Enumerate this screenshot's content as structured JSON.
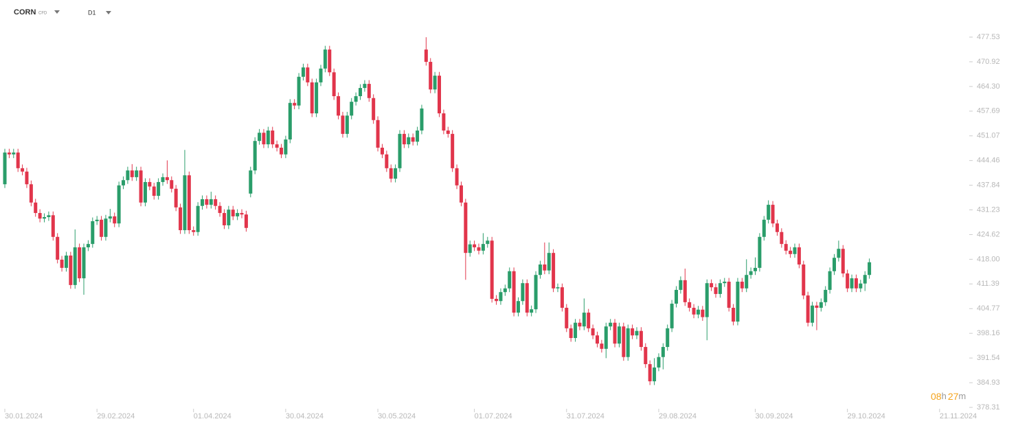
{
  "header": {
    "symbol": "CORN",
    "kind": "CFD",
    "interval": "D1"
  },
  "countdown": [
    "08",
    "h",
    "27",
    "m"
  ],
  "chart_data": {
    "type": "candlestick",
    "up_color": "#2a9d6a",
    "down_color": "#e1354b",
    "ylim": [
      378.31,
      480
    ],
    "yticks": [
      477.53,
      470.92,
      {
        "value": 464.3,
        "label": "464.30"
      },
      457.69,
      451.07,
      444.46,
      437.84,
      431.23,
      424.62,
      {
        "value": 418,
        "label": "418.00"
      },
      411.39,
      404.77,
      398.16,
      391.54,
      384.93,
      378.31
    ],
    "xlim": [
      -1.1,
      219.6
    ],
    "xticks": [
      {
        "value": 0,
        "label": "30.01.2024"
      },
      {
        "value": 21,
        "label": "29.02.2024"
      },
      {
        "value": 43,
        "label": "01.04.2024"
      },
      {
        "value": 64,
        "label": "30.04.2024"
      },
      {
        "value": 85,
        "label": "30.05.2024"
      },
      {
        "value": 107,
        "label": "01.07.2024"
      },
      {
        "value": 128,
        "label": "31.07.2024"
      },
      {
        "value": 149,
        "label": "29.08.2024"
      },
      {
        "value": 171,
        "label": "30.09.2024"
      },
      {
        "value": 192,
        "label": "29.10.2024"
      },
      {
        "value": 213,
        "label": "21.11.2024"
      }
    ],
    "ohlc": [
      [
        438.1,
        447.6,
        437.1,
        446.6
      ],
      [
        446.6,
        447.6,
        445.1,
        446.1
      ],
      [
        446.1,
        447.6,
        445.1,
        446.6
      ],
      [
        446.6,
        447.6,
        441.4,
        442.4
      ],
      [
        442.4,
        443.4,
        440.5,
        441.5
      ],
      [
        441.5,
        442.5,
        437.1,
        438.1
      ],
      [
        438.1,
        439.1,
        432.2,
        433.2
      ],
      [
        433.2,
        434.2,
        429.4,
        430.4
      ],
      [
        430.4,
        431.4,
        427.9,
        428.9
      ],
      [
        428.9,
        430.3,
        427.9,
        429.3
      ],
      [
        429.3,
        430.8,
        428.3,
        429.8
      ],
      [
        429.8,
        430.8,
        423.0,
        424.0
      ],
      [
        424.0,
        425.0,
        416.9,
        417.9
      ],
      [
        417.9,
        418.9,
        414.7,
        415.7
      ],
      [
        415.7,
        420.0,
        414.7,
        419.0
      ],
      [
        419.0,
        420.0,
        410.1,
        411.1
      ],
      [
        411.1,
        426.0,
        410.1,
        421.2
      ],
      [
        421.2,
        422.2,
        411.9,
        412.9
      ],
      [
        412.9,
        422.2,
        408.5,
        421.2
      ],
      [
        421.2,
        423.1,
        420.2,
        422.1
      ],
      [
        422.1,
        429.2,
        421.1,
        428.2
      ],
      [
        428.2,
        429.6,
        427.2,
        428.6
      ],
      [
        428.6,
        429.6,
        423.0,
        424.0
      ],
      [
        424.0,
        429.9,
        423.0,
        428.9
      ],
      [
        428.9,
        431.5,
        427.9,
        429.5
      ],
      [
        429.5,
        430.5,
        426.6,
        427.6
      ],
      [
        427.6,
        438.8,
        426.6,
        437.8
      ],
      [
        437.8,
        440.2,
        436.8,
        439.2
      ],
      [
        439.2,
        442.8,
        438.2,
        441.8
      ],
      [
        441.8,
        443.5,
        439.0,
        440.0
      ],
      [
        440.0,
        442.8,
        439.0,
        441.8
      ],
      [
        441.8,
        442.8,
        432.2,
        433.2
      ],
      [
        433.2,
        439.7,
        432.2,
        438.7
      ],
      [
        438.7,
        439.7,
        436.5,
        437.5
      ],
      [
        437.5,
        438.5,
        434.0,
        435.0
      ],
      [
        435.0,
        439.7,
        434.0,
        438.7
      ],
      [
        438.7,
        441.0,
        437.7,
        440.0
      ],
      [
        440.0,
        444.5,
        438.2,
        439.2
      ],
      [
        439.2,
        440.2,
        435.9,
        436.9
      ],
      [
        436.9,
        437.9,
        430.9,
        431.9
      ],
      [
        431.9,
        432.9,
        424.8,
        425.8
      ],
      [
        425.8,
        447.3,
        424.8,
        440.5
      ],
      [
        440.5,
        441.5,
        424.8,
        425.8
      ],
      [
        425.8,
        426.8,
        424.3,
        425.3
      ],
      [
        425.3,
        433.3,
        424.3,
        432.3
      ],
      [
        432.3,
        435.1,
        431.3,
        434.1
      ],
      [
        434.1,
        435.1,
        431.6,
        432.6
      ],
      [
        432.6,
        436.1,
        431.6,
        434.1
      ],
      [
        434.1,
        435.1,
        431.3,
        432.3
      ],
      [
        432.3,
        433.3,
        429.4,
        430.4
      ],
      [
        430.4,
        431.4,
        426.1,
        427.1
      ],
      [
        427.1,
        432.3,
        426.1,
        431.3
      ],
      [
        431.3,
        432.3,
        428.5,
        429.5
      ],
      [
        429.5,
        431.4,
        428.5,
        430.4
      ],
      [
        430.4,
        431.4,
        429.0,
        430.0
      ],
      [
        430.0,
        431.0,
        425.4,
        426.4
      ],
      [
        435.6,
        442.8,
        434.6,
        441.8
      ],
      [
        441.8,
        450.7,
        440.8,
        449.7
      ],
      [
        449.7,
        452.9,
        448.7,
        451.9
      ],
      [
        451.9,
        452.9,
        447.8,
        448.8
      ],
      [
        448.8,
        453.5,
        447.8,
        452.5
      ],
      [
        452.5,
        453.5,
        447.8,
        448.8
      ],
      [
        448.8,
        449.8,
        446.9,
        447.9
      ],
      [
        447.9,
        448.9,
        445.1,
        446.1
      ],
      [
        446.1,
        451.1,
        445.1,
        450.1
      ],
      [
        450.1,
        460.9,
        449.1,
        459.9
      ],
      [
        459.9,
        460.9,
        458.2,
        459.2
      ],
      [
        459.2,
        467.9,
        458.2,
        466.9
      ],
      [
        466.9,
        470.4,
        465.9,
        469.4
      ],
      [
        469.4,
        470.4,
        464.4,
        465.4
      ],
      [
        465.4,
        466.4,
        456.1,
        457.1
      ],
      [
        457.1,
        466.4,
        456.1,
        465.4
      ],
      [
        465.4,
        470.1,
        464.4,
        469.1
      ],
      [
        469.1,
        475.2,
        468.1,
        474.2
      ],
      [
        474.2,
        475.2,
        467.1,
        468.1
      ],
      [
        468.1,
        469.1,
        460.7,
        461.7
      ],
      [
        461.7,
        462.7,
        455.5,
        456.5
      ],
      [
        456.5,
        457.5,
        450.6,
        451.6
      ],
      [
        451.6,
        457.5,
        450.6,
        456.5
      ],
      [
        456.5,
        461.2,
        455.5,
        460.2
      ],
      [
        460.2,
        462.7,
        459.2,
        461.7
      ],
      [
        461.7,
        464.9,
        460.7,
        463.9
      ],
      [
        463.9,
        466.0,
        462.9,
        465.0
      ],
      [
        465.0,
        466.0,
        460.2,
        461.2
      ],
      [
        461.2,
        462.2,
        454.3,
        455.3
      ],
      [
        455.3,
        456.3,
        446.9,
        447.9
      ],
      [
        447.9,
        448.9,
        445.1,
        446.1
      ],
      [
        446.1,
        447.1,
        441.4,
        442.4
      ],
      [
        442.4,
        443.4,
        438.6,
        439.6
      ],
      [
        439.6,
        443.4,
        438.6,
        442.4
      ],
      [
        442.4,
        452.6,
        441.4,
        451.6
      ],
      [
        451.6,
        452.6,
        447.8,
        448.8
      ],
      [
        448.8,
        451.7,
        447.8,
        450.7
      ],
      [
        450.7,
        451.7,
        448.5,
        449.5
      ],
      [
        449.5,
        453.5,
        448.5,
        452.5
      ],
      [
        452.5,
        459.4,
        451.5,
        458.4
      ],
      [
        474.2,
        477.5,
        469.9,
        470.9
      ],
      [
        470.9,
        471.9,
        462.5,
        463.5
      ],
      [
        463.5,
        468.2,
        462.5,
        467.2
      ],
      [
        467.2,
        468.2,
        456.1,
        457.1
      ],
      [
        457.1,
        458.1,
        451.5,
        452.5
      ],
      [
        452.5,
        453.5,
        450.6,
        451.6
      ],
      [
        451.6,
        452.6,
        441.4,
        442.4
      ],
      [
        442.4,
        443.4,
        436.8,
        437.8
      ],
      [
        437.8,
        438.8,
        432.2,
        433.2
      ],
      [
        433.2,
        434.2,
        412.5,
        419.7
      ],
      [
        419.7,
        423.0,
        418.7,
        422.0
      ],
      [
        422.0,
        423.0,
        420.2,
        421.2
      ],
      [
        421.2,
        422.2,
        419.3,
        420.3
      ],
      [
        420.3,
        425.0,
        419.3,
        422.1
      ],
      [
        422.1,
        424.0,
        421.1,
        423.0
      ],
      [
        423.0,
        424.0,
        406.4,
        407.4
      ],
      [
        407.4,
        408.4,
        405.8,
        406.8
      ],
      [
        406.8,
        410.2,
        405.8,
        409.2
      ],
      [
        409.2,
        411.2,
        408.2,
        410.2
      ],
      [
        410.2,
        415.8,
        409.2,
        414.8
      ],
      [
        414.8,
        415.8,
        402.7,
        403.7
      ],
      [
        403.7,
        407.8,
        402.7,
        406.8
      ],
      [
        406.8,
        412.6,
        405.8,
        411.6
      ],
      [
        411.6,
        412.6,
        402.7,
        403.7
      ],
      [
        403.7,
        405.6,
        402.7,
        404.6
      ],
      [
        404.6,
        414.8,
        403.6,
        413.8
      ],
      [
        413.8,
        417.6,
        412.8,
        416.6
      ],
      [
        416.6,
        422.5,
        414.0,
        415.0
      ],
      [
        415.0,
        422.5,
        414.0,
        419.7
      ],
      [
        419.7,
        420.7,
        409.2,
        410.2
      ],
      [
        410.2,
        411.5,
        409.2,
        410.5
      ],
      [
        410.5,
        411.5,
        404.0,
        405.0
      ],
      [
        405.0,
        406.0,
        398.5,
        399.5
      ],
      [
        399.5,
        400.5,
        395.9,
        396.9
      ],
      [
        396.9,
        402.0,
        395.9,
        401.0
      ],
      [
        401.0,
        402.0,
        399.0,
        400.0
      ],
      [
        400.0,
        407.5,
        399.0,
        403.7
      ],
      [
        403.7,
        404.7,
        398.5,
        399.5
      ],
      [
        399.5,
        400.5,
        396.6,
        397.6
      ],
      [
        397.6,
        398.6,
        394.4,
        395.4
      ],
      [
        395.4,
        396.4,
        393.0,
        394.0
      ],
      [
        394.0,
        401.0,
        391.5,
        400.0
      ],
      [
        400.0,
        402.0,
        399.0,
        401.0
      ],
      [
        401.0,
        402.0,
        394.4,
        395.4
      ],
      [
        395.4,
        401.0,
        394.4,
        400.0
      ],
      [
        400.0,
        401.0,
        390.8,
        391.8
      ],
      [
        391.8,
        400.5,
        390.8,
        399.5
      ],
      [
        399.5,
        400.5,
        396.6,
        397.6
      ],
      [
        397.6,
        399.8,
        396.6,
        398.8
      ],
      [
        398.8,
        399.8,
        393.5,
        394.5
      ],
      [
        394.5,
        395.5,
        388.9,
        389.9
      ],
      [
        389.9,
        390.9,
        384.3,
        385.3
      ],
      [
        385.3,
        391.5,
        384.3,
        389.0
      ],
      [
        389.0,
        392.8,
        388.0,
        391.8
      ],
      [
        391.8,
        395.5,
        388.5,
        394.5
      ],
      [
        394.5,
        400.5,
        393.5,
        399.5
      ],
      [
        399.5,
        407.1,
        398.5,
        406.1
      ],
      [
        406.1,
        410.8,
        405.1,
        409.8
      ],
      [
        409.8,
        413.4,
        408.8,
        412.4
      ],
      [
        412.4,
        415.5,
        405.5,
        406.5
      ],
      [
        406.5,
        407.5,
        404.0,
        405.0
      ],
      [
        405.0,
        406.0,
        402.2,
        403.2
      ],
      [
        403.2,
        405.5,
        402.2,
        404.5
      ],
      [
        404.5,
        405.5,
        401.5,
        402.5
      ],
      [
        402.5,
        412.6,
        396.3,
        411.6
      ],
      [
        411.6,
        412.6,
        409.5,
        410.5
      ],
      [
        410.5,
        411.5,
        407.7,
        408.7
      ],
      [
        408.7,
        412.6,
        407.7,
        411.6
      ],
      [
        411.6,
        413.0,
        410.6,
        412.0
      ],
      [
        412.0,
        413.0,
        404.0,
        405.0
      ],
      [
        405.0,
        406.0,
        400.3,
        401.3
      ],
      [
        401.3,
        413.0,
        400.3,
        412.0
      ],
      [
        412.0,
        413.0,
        409.2,
        410.2
      ],
      [
        410.2,
        418.0,
        409.2,
        413.8
      ],
      [
        413.8,
        415.8,
        412.8,
        414.8
      ],
      [
        414.8,
        418.5,
        413.8,
        415.7
      ],
      [
        415.7,
        425.0,
        414.7,
        424.0
      ],
      [
        424.0,
        429.6,
        423.0,
        428.6
      ],
      [
        428.6,
        433.8,
        427.6,
        432.6
      ],
      [
        432.6,
        433.6,
        426.6,
        427.6
      ],
      [
        427.6,
        428.6,
        424.3,
        425.3
      ],
      [
        425.3,
        426.3,
        421.1,
        422.1
      ],
      [
        422.1,
        423.1,
        419.3,
        420.3
      ],
      [
        420.3,
        421.3,
        418.4,
        419.4
      ],
      [
        419.4,
        422.2,
        418.4,
        421.2
      ],
      [
        421.2,
        422.2,
        415.6,
        416.6
      ],
      [
        416.6,
        417.6,
        407.3,
        408.3
      ],
      [
        408.3,
        409.3,
        400.0,
        401.0
      ],
      [
        401.0,
        406.6,
        400.0,
        405.6
      ],
      [
        405.6,
        406.6,
        399.0,
        405.0
      ],
      [
        405.0,
        407.5,
        404.0,
        406.5
      ],
      [
        406.5,
        410.8,
        405.5,
        409.8
      ],
      [
        409.8,
        415.8,
        408.8,
        414.8
      ],
      [
        414.8,
        419.4,
        413.8,
        418.4
      ],
      [
        418.4,
        423.0,
        417.4,
        420.8
      ],
      [
        420.8,
        421.8,
        413.2,
        414.2
      ],
      [
        414.2,
        415.2,
        409.2,
        410.2
      ],
      [
        410.2,
        413.9,
        409.2,
        412.9
      ],
      [
        412.9,
        413.9,
        409.2,
        410.2
      ],
      [
        410.2,
        412.5,
        409.2,
        411.5
      ],
      [
        411.5,
        414.8,
        409.5,
        413.8
      ],
      [
        413.8,
        418.2,
        412.8,
        417.2
      ]
    ]
  }
}
